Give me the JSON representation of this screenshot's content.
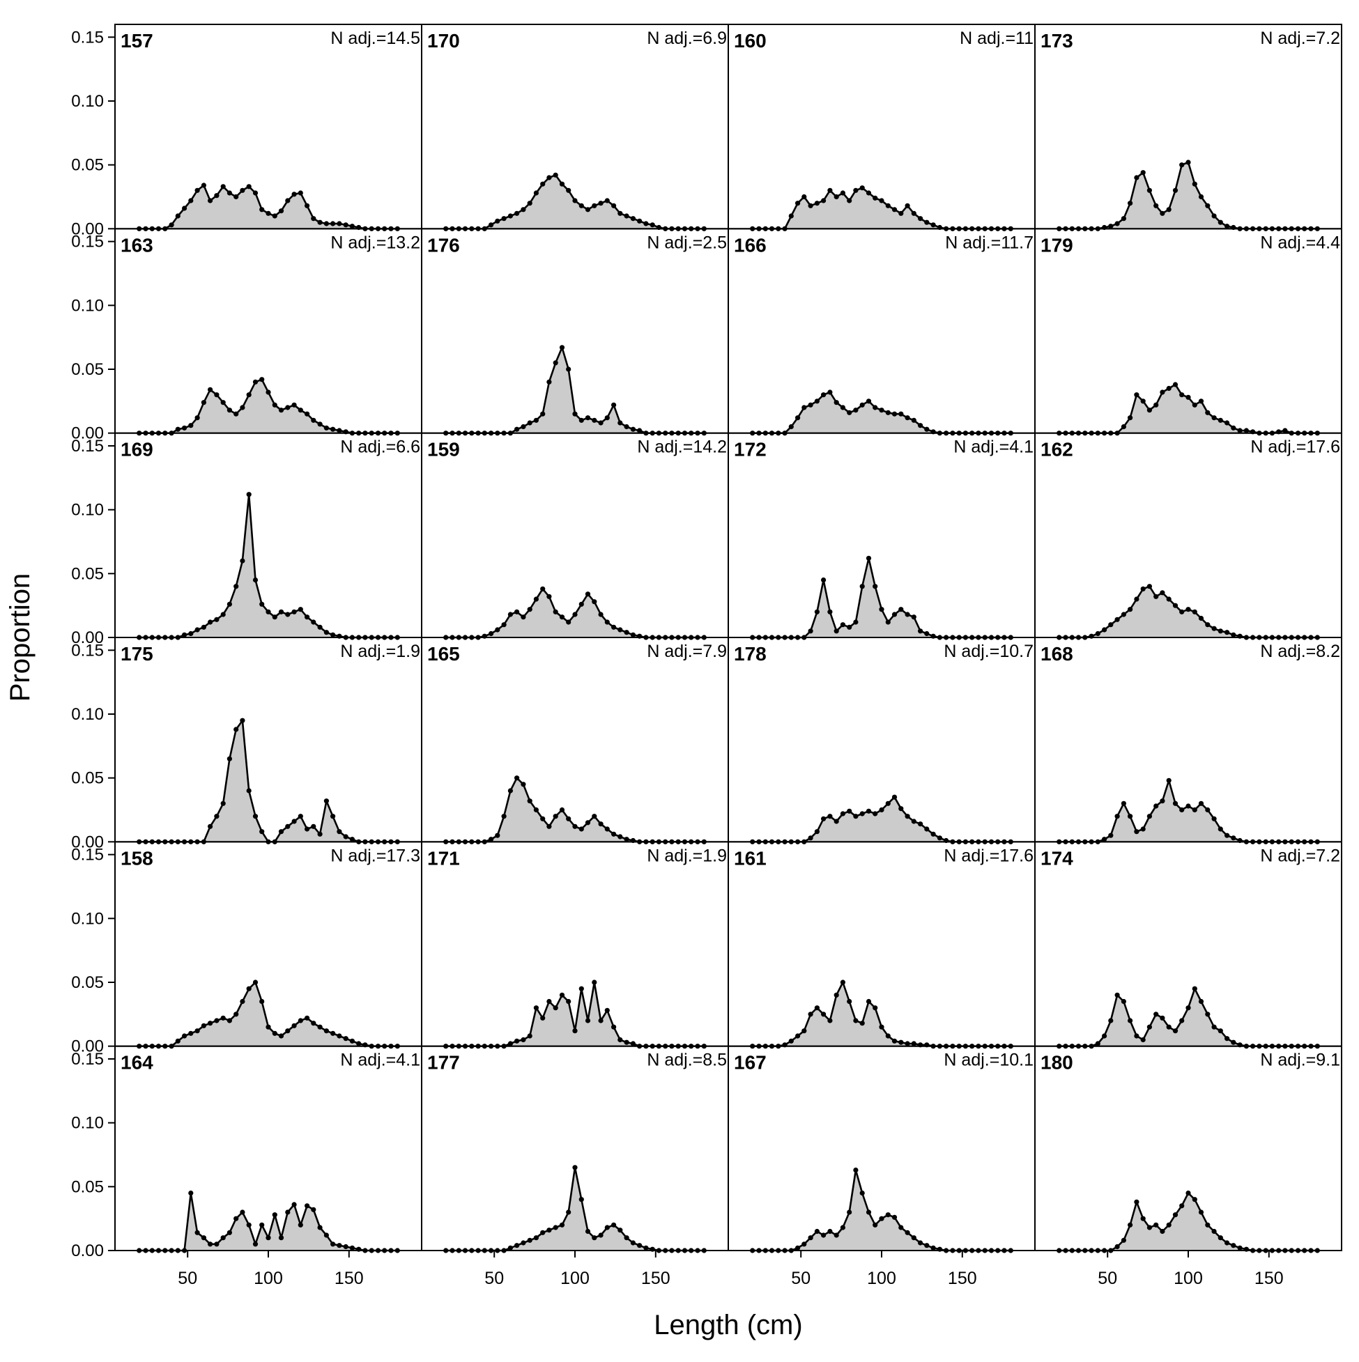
{
  "chart_data": {
    "type": "area",
    "xlabel": "Length (cm)",
    "ylabel": "Proportion",
    "xlim": [
      5,
      195
    ],
    "ylim": [
      0,
      0.16
    ],
    "x_ticks": [
      50,
      100,
      150
    ],
    "x_tick_labels": [
      "50",
      "100",
      "150"
    ],
    "y_ticks": [
      0.0,
      0.05,
      0.1,
      0.15
    ],
    "y_tick_labels": [
      "0.00",
      "0.05",
      "0.10",
      "0.15"
    ],
    "grid": false,
    "legend": "none",
    "fill_color": "#cccccc",
    "line_color": "#000000",
    "layout": {
      "rows": 6,
      "cols": 4
    },
    "x_sample": [
      20,
      24,
      28,
      32,
      36,
      40,
      44,
      48,
      52,
      56,
      60,
      64,
      68,
      72,
      76,
      80,
      84,
      88,
      92,
      96,
      100,
      104,
      108,
      112,
      116,
      120,
      124,
      128,
      132,
      136,
      140,
      144,
      148,
      152,
      156,
      160,
      164,
      168,
      172,
      176,
      180
    ],
    "panels": [
      {
        "id": "157",
        "n_label": "N adj.=14.5",
        "values": [
          0,
          0,
          0,
          0,
          0,
          0.003,
          0.01,
          0.016,
          0.022,
          0.03,
          0.034,
          0.022,
          0.026,
          0.033,
          0.028,
          0.025,
          0.03,
          0.033,
          0.028,
          0.015,
          0.012,
          0.01,
          0.014,
          0.022,
          0.027,
          0.028,
          0.018,
          0.008,
          0.005,
          0.004,
          0.004,
          0.004,
          0.003,
          0.002,
          0.001,
          0,
          0,
          0,
          0,
          0,
          0
        ]
      },
      {
        "id": "163",
        "n_label": "N adj.=13.2",
        "values": [
          0,
          0,
          0,
          0,
          0,
          0,
          0.003,
          0.004,
          0.006,
          0.012,
          0.024,
          0.034,
          0.03,
          0.024,
          0.018,
          0.015,
          0.02,
          0.03,
          0.04,
          0.042,
          0.032,
          0.022,
          0.018,
          0.02,
          0.022,
          0.018,
          0.015,
          0.01,
          0.007,
          0.004,
          0.003,
          0.002,
          0.001,
          0,
          0,
          0,
          0,
          0,
          0,
          0,
          0
        ]
      },
      {
        "id": "169",
        "n_label": "N adj.=6.6",
        "values": [
          0,
          0,
          0,
          0,
          0,
          0,
          0,
          0.002,
          0.003,
          0.006,
          0.008,
          0.012,
          0.014,
          0.018,
          0.026,
          0.04,
          0.06,
          0.112,
          0.045,
          0.026,
          0.02,
          0.016,
          0.02,
          0.018,
          0.02,
          0.022,
          0.016,
          0.012,
          0.008,
          0.004,
          0.002,
          0.001,
          0,
          0,
          0,
          0,
          0,
          0,
          0,
          0,
          0
        ]
      },
      {
        "id": "175",
        "n_label": "N adj.=1.9",
        "values": [
          0,
          0,
          0,
          0,
          0,
          0,
          0,
          0,
          0,
          0,
          0,
          0.012,
          0.02,
          0.03,
          0.065,
          0.088,
          0.095,
          0.04,
          0.02,
          0.008,
          0,
          0,
          0.008,
          0.012,
          0.016,
          0.02,
          0.01,
          0.012,
          0.006,
          0.032,
          0.02,
          0.008,
          0.004,
          0.002,
          0,
          0,
          0,
          0,
          0,
          0,
          0
        ]
      },
      {
        "id": "158",
        "n_label": "N adj.=17.3",
        "values": [
          0,
          0,
          0,
          0,
          0,
          0,
          0.004,
          0.008,
          0.01,
          0.012,
          0.016,
          0.018,
          0.02,
          0.022,
          0.02,
          0.025,
          0.035,
          0.045,
          0.05,
          0.035,
          0.015,
          0.01,
          0.008,
          0.012,
          0.016,
          0.02,
          0.022,
          0.018,
          0.015,
          0.012,
          0.01,
          0.008,
          0.006,
          0.004,
          0.002,
          0.001,
          0,
          0,
          0,
          0,
          0
        ]
      },
      {
        "id": "164",
        "n_label": "N adj.=4.1",
        "values": [
          0,
          0,
          0,
          0,
          0,
          0,
          0,
          0,
          0.045,
          0.014,
          0.01,
          0.005,
          0.005,
          0.01,
          0.014,
          0.025,
          0.03,
          0.02,
          0.005,
          0.02,
          0.01,
          0.028,
          0.01,
          0.03,
          0.036,
          0.02,
          0.035,
          0.032,
          0.018,
          0.012,
          0.005,
          0.004,
          0.003,
          0.002,
          0.001,
          0,
          0,
          0,
          0,
          0,
          0
        ]
      },
      {
        "id": "170",
        "n_label": "N adj.=6.9",
        "values": [
          0,
          0,
          0,
          0,
          0,
          0,
          0,
          0.003,
          0.006,
          0.008,
          0.01,
          0.012,
          0.015,
          0.02,
          0.028,
          0.035,
          0.04,
          0.042,
          0.035,
          0.03,
          0.022,
          0.018,
          0.015,
          0.018,
          0.02,
          0.022,
          0.018,
          0.012,
          0.01,
          0.008,
          0.006,
          0.004,
          0.003,
          0.001,
          0,
          0,
          0,
          0,
          0,
          0,
          0
        ]
      },
      {
        "id": "176",
        "n_label": "N adj.=2.5",
        "values": [
          0,
          0,
          0,
          0,
          0,
          0,
          0,
          0,
          0,
          0,
          0,
          0.003,
          0.005,
          0.008,
          0.01,
          0.015,
          0.04,
          0.055,
          0.067,
          0.05,
          0.015,
          0.01,
          0.012,
          0.01,
          0.008,
          0.012,
          0.022,
          0.008,
          0.005,
          0.003,
          0.002,
          0,
          0,
          0,
          0,
          0,
          0,
          0,
          0,
          0,
          0
        ]
      },
      {
        "id": "159",
        "n_label": "N adj.=14.2",
        "values": [
          0,
          0,
          0,
          0,
          0,
          0,
          0.001,
          0.003,
          0.006,
          0.01,
          0.018,
          0.02,
          0.016,
          0.022,
          0.03,
          0.038,
          0.032,
          0.02,
          0.016,
          0.012,
          0.018,
          0.026,
          0.034,
          0.028,
          0.018,
          0.012,
          0.008,
          0.006,
          0.004,
          0.002,
          0.001,
          0,
          0,
          0,
          0,
          0,
          0,
          0,
          0,
          0,
          0
        ]
      },
      {
        "id": "165",
        "n_label": "N adj.=7.9",
        "values": [
          0,
          0,
          0,
          0,
          0,
          0,
          0,
          0.002,
          0.005,
          0.02,
          0.04,
          0.05,
          0.045,
          0.032,
          0.025,
          0.018,
          0.012,
          0.02,
          0.025,
          0.018,
          0.012,
          0.01,
          0.015,
          0.02,
          0.014,
          0.01,
          0.006,
          0.004,
          0.002,
          0.001,
          0,
          0,
          0,
          0,
          0,
          0,
          0,
          0,
          0,
          0,
          0
        ]
      },
      {
        "id": "171",
        "n_label": "N adj.=1.9",
        "values": [
          0,
          0,
          0,
          0,
          0,
          0,
          0,
          0,
          0,
          0,
          0.002,
          0.004,
          0.005,
          0.008,
          0.03,
          0.022,
          0.035,
          0.03,
          0.04,
          0.035,
          0.012,
          0.045,
          0.02,
          0.05,
          0.02,
          0.028,
          0.015,
          0.005,
          0.003,
          0.002,
          0,
          0,
          0,
          0,
          0,
          0,
          0,
          0,
          0,
          0,
          0
        ]
      },
      {
        "id": "177",
        "n_label": "N adj.=8.5",
        "values": [
          0,
          0,
          0,
          0,
          0,
          0,
          0,
          0,
          0,
          0,
          0.002,
          0.004,
          0.006,
          0.008,
          0.01,
          0.014,
          0.016,
          0.018,
          0.02,
          0.03,
          0.065,
          0.04,
          0.015,
          0.01,
          0.012,
          0.018,
          0.02,
          0.016,
          0.01,
          0.006,
          0.004,
          0.002,
          0.001,
          0,
          0,
          0,
          0,
          0,
          0,
          0,
          0
        ]
      },
      {
        "id": "160",
        "n_label": "N adj.=11",
        "values": [
          0,
          0,
          0,
          0,
          0,
          0,
          0.01,
          0.02,
          0.025,
          0.018,
          0.02,
          0.022,
          0.03,
          0.025,
          0.028,
          0.022,
          0.03,
          0.032,
          0.028,
          0.024,
          0.022,
          0.018,
          0.015,
          0.012,
          0.018,
          0.012,
          0.008,
          0.005,
          0.003,
          0.001,
          0,
          0,
          0,
          0,
          0,
          0,
          0,
          0,
          0,
          0,
          0
        ]
      },
      {
        "id": "166",
        "n_label": "N adj.=11.7",
        "values": [
          0,
          0,
          0,
          0,
          0,
          0,
          0.005,
          0.012,
          0.02,
          0.022,
          0.025,
          0.03,
          0.032,
          0.024,
          0.02,
          0.016,
          0.018,
          0.022,
          0.025,
          0.02,
          0.018,
          0.016,
          0.015,
          0.015,
          0.012,
          0.01,
          0.006,
          0.003,
          0.001,
          0,
          0,
          0,
          0,
          0,
          0,
          0,
          0,
          0,
          0,
          0,
          0
        ]
      },
      {
        "id": "172",
        "n_label": "N adj.=4.1",
        "values": [
          0,
          0,
          0,
          0,
          0,
          0,
          0,
          0,
          0,
          0.005,
          0.02,
          0.045,
          0.02,
          0.005,
          0.01,
          0.008,
          0.012,
          0.04,
          0.062,
          0.04,
          0.022,
          0.012,
          0.018,
          0.022,
          0.018,
          0.016,
          0.005,
          0.003,
          0.001,
          0,
          0,
          0,
          0,
          0,
          0,
          0,
          0,
          0,
          0,
          0,
          0
        ]
      },
      {
        "id": "178",
        "n_label": "N adj.=10.7",
        "values": [
          0,
          0,
          0,
          0,
          0,
          0,
          0,
          0,
          0,
          0.003,
          0.008,
          0.018,
          0.02,
          0.016,
          0.022,
          0.024,
          0.02,
          0.022,
          0.024,
          0.022,
          0.025,
          0.03,
          0.035,
          0.026,
          0.02,
          0.016,
          0.014,
          0.01,
          0.006,
          0.003,
          0.001,
          0,
          0,
          0,
          0,
          0,
          0,
          0,
          0,
          0,
          0
        ]
      },
      {
        "id": "161",
        "n_label": "N adj.=17.6",
        "values": [
          0,
          0,
          0,
          0,
          0,
          0.001,
          0.004,
          0.008,
          0.012,
          0.025,
          0.03,
          0.025,
          0.02,
          0.04,
          0.05,
          0.035,
          0.02,
          0.018,
          0.035,
          0.03,
          0.015,
          0.008,
          0.004,
          0.003,
          0.002,
          0.002,
          0.001,
          0.001,
          0,
          0,
          0,
          0,
          0,
          0,
          0,
          0,
          0,
          0,
          0,
          0,
          0
        ]
      },
      {
        "id": "167",
        "n_label": "N adj.=10.1",
        "values": [
          0,
          0,
          0,
          0,
          0,
          0,
          0,
          0.002,
          0.005,
          0.01,
          0.015,
          0.012,
          0.015,
          0.012,
          0.018,
          0.03,
          0.063,
          0.045,
          0.03,
          0.02,
          0.025,
          0.028,
          0.026,
          0.018,
          0.014,
          0.01,
          0.006,
          0.004,
          0.002,
          0.001,
          0,
          0,
          0,
          0,
          0,
          0,
          0,
          0,
          0,
          0,
          0
        ]
      },
      {
        "id": "173",
        "n_label": "N adj.=7.2",
        "values": [
          0,
          0,
          0,
          0,
          0,
          0,
          0,
          0.001,
          0.002,
          0.004,
          0.008,
          0.02,
          0.04,
          0.044,
          0.03,
          0.018,
          0.012,
          0.015,
          0.03,
          0.05,
          0.052,
          0.035,
          0.025,
          0.018,
          0.01,
          0.005,
          0.002,
          0.001,
          0,
          0,
          0,
          0,
          0,
          0,
          0,
          0,
          0,
          0,
          0,
          0,
          0
        ]
      },
      {
        "id": "179",
        "n_label": "N adj.=4.4",
        "values": [
          0,
          0,
          0,
          0,
          0,
          0,
          0,
          0,
          0,
          0,
          0.005,
          0.012,
          0.03,
          0.025,
          0.018,
          0.022,
          0.032,
          0.035,
          0.038,
          0.03,
          0.028,
          0.022,
          0.025,
          0.016,
          0.012,
          0.01,
          0.008,
          0.004,
          0.002,
          0.002,
          0.001,
          0,
          0,
          0,
          0.001,
          0.002,
          0,
          0,
          0,
          0,
          0
        ]
      },
      {
        "id": "162",
        "n_label": "N adj.=17.6",
        "values": [
          0,
          0,
          0,
          0,
          0,
          0.001,
          0.003,
          0.006,
          0.01,
          0.014,
          0.018,
          0.022,
          0.03,
          0.038,
          0.04,
          0.032,
          0.035,
          0.03,
          0.025,
          0.02,
          0.022,
          0.02,
          0.015,
          0.01,
          0.007,
          0.005,
          0.004,
          0.002,
          0.001,
          0,
          0,
          0,
          0,
          0,
          0,
          0,
          0,
          0,
          0,
          0,
          0
        ]
      },
      {
        "id": "168",
        "n_label": "N adj.=8.2",
        "values": [
          0,
          0,
          0,
          0,
          0,
          0,
          0,
          0.002,
          0.005,
          0.02,
          0.03,
          0.02,
          0.008,
          0.01,
          0.02,
          0.028,
          0.032,
          0.048,
          0.03,
          0.025,
          0.028,
          0.025,
          0.03,
          0.025,
          0.018,
          0.01,
          0.005,
          0.003,
          0.001,
          0,
          0,
          0,
          0,
          0,
          0,
          0,
          0,
          0,
          0,
          0,
          0
        ]
      },
      {
        "id": "174",
        "n_label": "N adj.=7.2",
        "values": [
          0,
          0,
          0,
          0,
          0,
          0,
          0.002,
          0.008,
          0.02,
          0.04,
          0.035,
          0.02,
          0.008,
          0.005,
          0.015,
          0.025,
          0.022,
          0.015,
          0.012,
          0.02,
          0.03,
          0.045,
          0.035,
          0.025,
          0.015,
          0.012,
          0.006,
          0.003,
          0.001,
          0,
          0,
          0,
          0,
          0,
          0,
          0,
          0,
          0,
          0,
          0,
          0
        ]
      },
      {
        "id": "180",
        "n_label": "N adj.=9.1",
        "values": [
          0,
          0,
          0,
          0,
          0,
          0,
          0,
          0,
          0,
          0.003,
          0.008,
          0.02,
          0.038,
          0.025,
          0.018,
          0.02,
          0.015,
          0.02,
          0.028,
          0.035,
          0.045,
          0.04,
          0.03,
          0.02,
          0.015,
          0.01,
          0.006,
          0.004,
          0.002,
          0.001,
          0,
          0,
          0,
          0,
          0,
          0,
          0,
          0,
          0,
          0,
          0
        ]
      }
    ]
  }
}
